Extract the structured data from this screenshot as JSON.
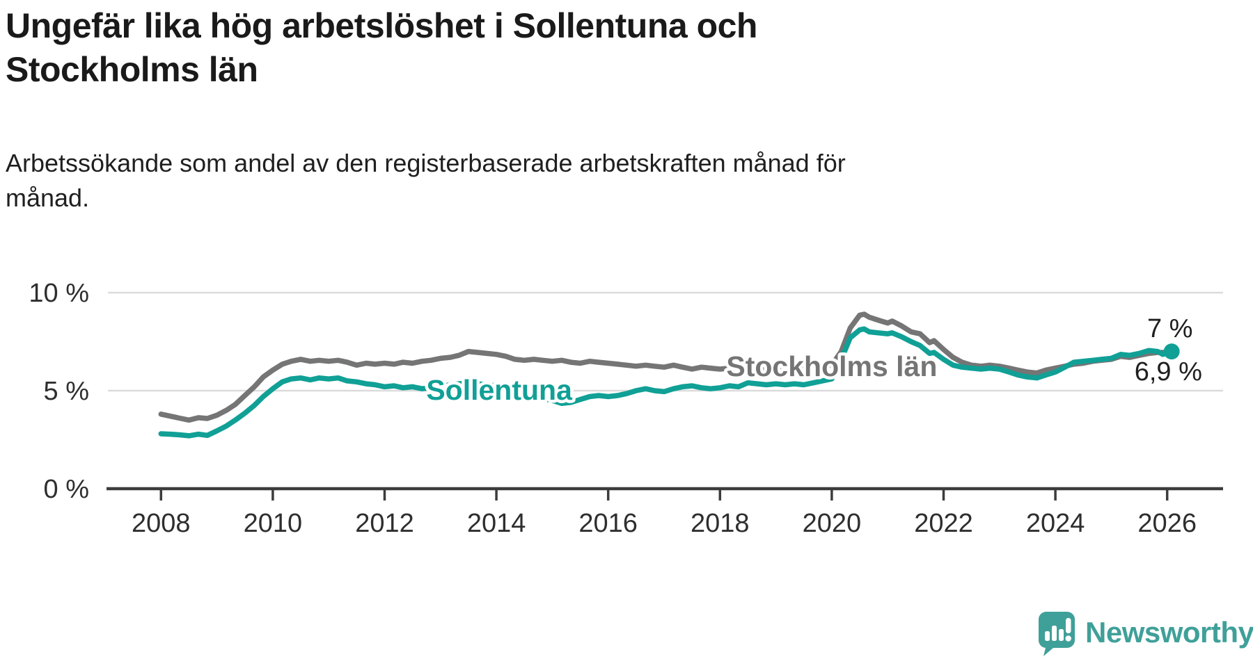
{
  "header": {
    "title_lines": [
      "Ungefär lika hög arbetslöshet i Sollentuna och",
      "Stockholms län"
    ],
    "subtitle_lines": [
      "Arbetssökande som andel av den registerbaserade arbetskraften månad för",
      "månad."
    ]
  },
  "branding": {
    "wordmark": "Newsworthy"
  },
  "colors": {
    "sollentuna": "#10a096",
    "stockholm": "#757575",
    "grid": "#dbdbdb",
    "axis": "#3c3c3c",
    "tick_text": "#2e2e2e",
    "value_text": "#1f1f1f",
    "brand": "#3fa099"
  },
  "chart_data": {
    "type": "line",
    "title": "Ungefär lika hög arbetslöshet i Sollentuna och Stockholms län",
    "subtitle": "Arbetssökande som andel av den registerbaserade arbetskraften månad för månad.",
    "unit": "%",
    "x_axis": {
      "min": 2007.05,
      "max": 2027.0,
      "ticks": [
        {
          "year": 2008,
          "label": "2008"
        },
        {
          "year": 2010,
          "label": "2010"
        },
        {
          "year": 2012,
          "label": "2012"
        },
        {
          "year": 2014,
          "label": "2014"
        },
        {
          "year": 2016,
          "label": "2016"
        },
        {
          "year": 2018,
          "label": "2018"
        },
        {
          "year": 2020,
          "label": "2020"
        },
        {
          "year": 2022,
          "label": "2022"
        },
        {
          "year": 2024,
          "label": "2024"
        },
        {
          "year": 2026,
          "label": "2026"
        }
      ]
    },
    "y_axis": {
      "min": 0,
      "max": 12.5,
      "gridlines": [
        5,
        10
      ],
      "ticks": [
        {
          "value": 10,
          "label": "10 %"
        },
        {
          "value": 5,
          "label": "5 %"
        },
        {
          "value": 0,
          "label": "0 %"
        }
      ]
    },
    "series": [
      {
        "name": "Stockholms län",
        "color_key": "stockholm",
        "end_dot": false,
        "line_label": {
          "text": "Stockholms län",
          "year": 2020.0,
          "value": 6.25
        },
        "end_label": {
          "text": "6,9 %",
          "year": 2026.02,
          "value": 6.0
        },
        "points": [
          [
            2008.0,
            3.8
          ],
          [
            2008.17,
            3.7
          ],
          [
            2008.33,
            3.6
          ],
          [
            2008.5,
            3.5
          ],
          [
            2008.67,
            3.62
          ],
          [
            2008.83,
            3.58
          ],
          [
            2009.0,
            3.75
          ],
          [
            2009.17,
            4.0
          ],
          [
            2009.33,
            4.3
          ],
          [
            2009.5,
            4.75
          ],
          [
            2009.67,
            5.2
          ],
          [
            2009.83,
            5.7
          ],
          [
            2010.0,
            6.05
          ],
          [
            2010.17,
            6.35
          ],
          [
            2010.33,
            6.5
          ],
          [
            2010.5,
            6.6
          ],
          [
            2010.67,
            6.5
          ],
          [
            2010.83,
            6.55
          ],
          [
            2011.0,
            6.5
          ],
          [
            2011.17,
            6.55
          ],
          [
            2011.33,
            6.45
          ],
          [
            2011.5,
            6.3
          ],
          [
            2011.67,
            6.4
          ],
          [
            2011.83,
            6.35
          ],
          [
            2012.0,
            6.4
          ],
          [
            2012.17,
            6.35
          ],
          [
            2012.33,
            6.45
          ],
          [
            2012.5,
            6.4
          ],
          [
            2012.67,
            6.5
          ],
          [
            2012.83,
            6.55
          ],
          [
            2013.0,
            6.65
          ],
          [
            2013.17,
            6.7
          ],
          [
            2013.33,
            6.8
          ],
          [
            2013.5,
            7.0
          ],
          [
            2013.67,
            6.95
          ],
          [
            2013.83,
            6.9
          ],
          [
            2014.0,
            6.85
          ],
          [
            2014.17,
            6.75
          ],
          [
            2014.33,
            6.6
          ],
          [
            2014.5,
            6.55
          ],
          [
            2014.67,
            6.6
          ],
          [
            2014.83,
            6.55
          ],
          [
            2015.0,
            6.5
          ],
          [
            2015.17,
            6.55
          ],
          [
            2015.33,
            6.45
          ],
          [
            2015.5,
            6.4
          ],
          [
            2015.67,
            6.5
          ],
          [
            2015.83,
            6.45
          ],
          [
            2016.0,
            6.4
          ],
          [
            2016.17,
            6.35
          ],
          [
            2016.33,
            6.3
          ],
          [
            2016.5,
            6.25
          ],
          [
            2016.67,
            6.3
          ],
          [
            2016.83,
            6.25
          ],
          [
            2017.0,
            6.2
          ],
          [
            2017.17,
            6.3
          ],
          [
            2017.33,
            6.2
          ],
          [
            2017.5,
            6.1
          ],
          [
            2017.67,
            6.2
          ],
          [
            2017.83,
            6.15
          ],
          [
            2018.0,
            6.1
          ],
          [
            2018.17,
            6.15
          ],
          [
            2018.33,
            6.05
          ],
          [
            2018.5,
            6.1
          ],
          [
            2018.67,
            6.05
          ],
          [
            2018.83,
            6.1
          ],
          [
            2019.0,
            6.05
          ],
          [
            2019.17,
            6.1
          ],
          [
            2019.33,
            6.15
          ],
          [
            2019.5,
            6.1
          ],
          [
            2019.67,
            6.2
          ],
          [
            2019.83,
            6.25
          ],
          [
            2020.0,
            6.3
          ],
          [
            2020.17,
            7.0
          ],
          [
            2020.33,
            8.2
          ],
          [
            2020.5,
            8.85
          ],
          [
            2020.58,
            8.9
          ],
          [
            2020.67,
            8.75
          ],
          [
            2020.83,
            8.6
          ],
          [
            2021.0,
            8.45
          ],
          [
            2021.08,
            8.55
          ],
          [
            2021.25,
            8.3
          ],
          [
            2021.42,
            8.0
          ],
          [
            2021.58,
            7.9
          ],
          [
            2021.75,
            7.45
          ],
          [
            2021.83,
            7.55
          ],
          [
            2022.0,
            7.1
          ],
          [
            2022.17,
            6.7
          ],
          [
            2022.33,
            6.45
          ],
          [
            2022.5,
            6.3
          ],
          [
            2022.67,
            6.25
          ],
          [
            2022.83,
            6.3
          ],
          [
            2023.0,
            6.25
          ],
          [
            2023.17,
            6.15
          ],
          [
            2023.33,
            6.05
          ],
          [
            2023.5,
            5.95
          ],
          [
            2023.67,
            5.9
          ],
          [
            2023.83,
            6.05
          ],
          [
            2024.0,
            6.15
          ],
          [
            2024.17,
            6.25
          ],
          [
            2024.33,
            6.35
          ],
          [
            2024.5,
            6.4
          ],
          [
            2024.67,
            6.5
          ],
          [
            2024.83,
            6.55
          ],
          [
            2025.0,
            6.6
          ],
          [
            2025.17,
            6.75
          ],
          [
            2025.33,
            6.7
          ],
          [
            2025.5,
            6.8
          ],
          [
            2025.67,
            6.9
          ],
          [
            2025.83,
            6.95
          ],
          [
            2026.0,
            6.95
          ],
          [
            2026.08,
            6.9
          ]
        ]
      },
      {
        "name": "Sollentuna",
        "color_key": "sollentuna",
        "end_dot": true,
        "line_label": {
          "text": "Sollentuna",
          "year": 2014.05,
          "value": 5.03
        },
        "end_label": {
          "text": "7 %",
          "year": 2026.05,
          "value": 8.2
        },
        "points": [
          [
            2008.0,
            2.8
          ],
          [
            2008.17,
            2.78
          ],
          [
            2008.33,
            2.75
          ],
          [
            2008.5,
            2.7
          ],
          [
            2008.67,
            2.78
          ],
          [
            2008.83,
            2.72
          ],
          [
            2009.0,
            2.95
          ],
          [
            2009.17,
            3.2
          ],
          [
            2009.33,
            3.5
          ],
          [
            2009.5,
            3.85
          ],
          [
            2009.67,
            4.25
          ],
          [
            2009.83,
            4.7
          ],
          [
            2010.0,
            5.1
          ],
          [
            2010.17,
            5.45
          ],
          [
            2010.33,
            5.6
          ],
          [
            2010.5,
            5.65
          ],
          [
            2010.67,
            5.55
          ],
          [
            2010.83,
            5.65
          ],
          [
            2011.0,
            5.6
          ],
          [
            2011.17,
            5.65
          ],
          [
            2011.33,
            5.5
          ],
          [
            2011.5,
            5.45
          ],
          [
            2011.67,
            5.35
          ],
          [
            2011.83,
            5.3
          ],
          [
            2012.0,
            5.2
          ],
          [
            2012.17,
            5.25
          ],
          [
            2012.33,
            5.15
          ],
          [
            2012.5,
            5.2
          ],
          [
            2012.67,
            5.1
          ],
          [
            2012.83,
            5.15
          ],
          [
            2013.0,
            5.2
          ],
          [
            2013.17,
            5.3
          ],
          [
            2013.33,
            5.35
          ],
          [
            2013.5,
            5.4
          ],
          [
            2013.67,
            5.35
          ],
          [
            2013.83,
            5.3
          ],
          [
            2014.0,
            5.25
          ],
          [
            2014.17,
            5.15
          ],
          [
            2014.33,
            5.05
          ],
          [
            2014.5,
            4.95
          ],
          [
            2014.67,
            4.85
          ],
          [
            2014.83,
            4.6
          ],
          [
            2015.0,
            4.5
          ],
          [
            2015.17,
            4.35
          ],
          [
            2015.33,
            4.4
          ],
          [
            2015.5,
            4.55
          ],
          [
            2015.67,
            4.7
          ],
          [
            2015.83,
            4.75
          ],
          [
            2016.0,
            4.7
          ],
          [
            2016.17,
            4.75
          ],
          [
            2016.33,
            4.85
          ],
          [
            2016.5,
            5.0
          ],
          [
            2016.67,
            5.1
          ],
          [
            2016.83,
            5.0
          ],
          [
            2017.0,
            4.95
          ],
          [
            2017.17,
            5.1
          ],
          [
            2017.33,
            5.2
          ],
          [
            2017.5,
            5.25
          ],
          [
            2017.67,
            5.15
          ],
          [
            2017.83,
            5.1
          ],
          [
            2018.0,
            5.15
          ],
          [
            2018.17,
            5.25
          ],
          [
            2018.33,
            5.2
          ],
          [
            2018.5,
            5.4
          ],
          [
            2018.67,
            5.35
          ],
          [
            2018.83,
            5.3
          ],
          [
            2019.0,
            5.35
          ],
          [
            2019.17,
            5.3
          ],
          [
            2019.33,
            5.35
          ],
          [
            2019.5,
            5.3
          ],
          [
            2019.67,
            5.4
          ],
          [
            2019.83,
            5.5
          ],
          [
            2020.0,
            5.6
          ],
          [
            2020.17,
            6.6
          ],
          [
            2020.33,
            7.7
          ],
          [
            2020.5,
            8.1
          ],
          [
            2020.58,
            8.15
          ],
          [
            2020.67,
            8.0
          ],
          [
            2020.83,
            7.95
          ],
          [
            2021.0,
            7.9
          ],
          [
            2021.08,
            7.95
          ],
          [
            2021.25,
            7.75
          ],
          [
            2021.42,
            7.5
          ],
          [
            2021.58,
            7.3
          ],
          [
            2021.75,
            6.9
          ],
          [
            2021.83,
            6.95
          ],
          [
            2022.0,
            6.6
          ],
          [
            2022.17,
            6.3
          ],
          [
            2022.33,
            6.2
          ],
          [
            2022.5,
            6.15
          ],
          [
            2022.67,
            6.1
          ],
          [
            2022.83,
            6.15
          ],
          [
            2023.0,
            6.1
          ],
          [
            2023.17,
            5.95
          ],
          [
            2023.33,
            5.8
          ],
          [
            2023.5,
            5.7
          ],
          [
            2023.67,
            5.65
          ],
          [
            2023.83,
            5.8
          ],
          [
            2024.0,
            5.95
          ],
          [
            2024.17,
            6.2
          ],
          [
            2024.33,
            6.45
          ],
          [
            2024.5,
            6.5
          ],
          [
            2024.67,
            6.55
          ],
          [
            2024.83,
            6.6
          ],
          [
            2025.0,
            6.65
          ],
          [
            2025.17,
            6.85
          ],
          [
            2025.33,
            6.8
          ],
          [
            2025.5,
            6.9
          ],
          [
            2025.67,
            7.05
          ],
          [
            2025.83,
            7.0
          ],
          [
            2025.92,
            6.85
          ],
          [
            2026.08,
            7.0
          ]
        ]
      }
    ]
  }
}
